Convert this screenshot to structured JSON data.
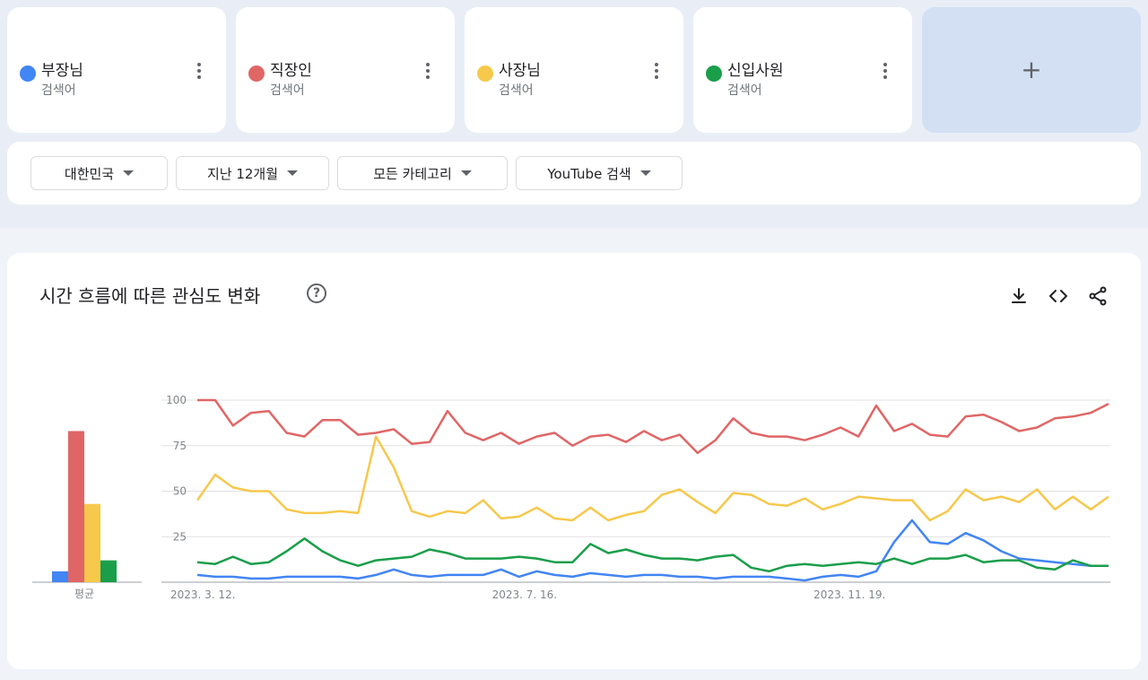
{
  "terms": [
    {
      "name": "부장님",
      "sub": "검색어",
      "color": "#4285f4"
    },
    {
      "name": "직장인",
      "sub": "검색어",
      "color": "#e06666"
    },
    {
      "name": "사장님",
      "sub": "검색어",
      "color": "#f6c84c"
    },
    {
      "name": "신입사원",
      "sub": "검색어",
      "color": "#1a9e4a"
    }
  ],
  "add_button": {
    "label": "+"
  },
  "filters": [
    "대한민국",
    "지난 12개월",
    "모든 카테고리",
    "YouTube 검색"
  ],
  "chart": {
    "title": "시간 흐름에 따른 관심도 변화",
    "help_label": "?",
    "average_label": "평균",
    "tools": {
      "download": "download-icon",
      "embed": "embed-icon",
      "share": "share-icon"
    }
  },
  "chart_data": {
    "type": "line",
    "ylim": [
      0,
      100
    ],
    "yticks": [
      25,
      50,
      75,
      100
    ],
    "xtick_labels": [
      {
        "index": 0,
        "label": "2023. 3. 12."
      },
      {
        "index": 18,
        "label": "2023. 7. 16."
      },
      {
        "index": 36,
        "label": "2023. 11. 19."
      }
    ],
    "averages": [
      6,
      83,
      43,
      12
    ],
    "grid": true,
    "series": [
      {
        "name": "부장님",
        "color": "#4285f4",
        "values": [
          4,
          3,
          3,
          2,
          2,
          3,
          3,
          3,
          3,
          2,
          4,
          7,
          4,
          3,
          4,
          4,
          4,
          7,
          3,
          6,
          4,
          3,
          5,
          4,
          3,
          4,
          4,
          3,
          3,
          2,
          3,
          3,
          3,
          2,
          1,
          3,
          4,
          3,
          6,
          22,
          34,
          22,
          21,
          27,
          23,
          17,
          13,
          12,
          11,
          10,
          9,
          9
        ]
      },
      {
        "name": "직장인",
        "color": "#e06666",
        "values": [
          100,
          100,
          86,
          93,
          94,
          82,
          80,
          89,
          89,
          81,
          82,
          84,
          76,
          77,
          94,
          82,
          78,
          82,
          76,
          80,
          82,
          75,
          80,
          81,
          77,
          83,
          78,
          81,
          71,
          78,
          90,
          82,
          80,
          80,
          78,
          81,
          85,
          80,
          97,
          83,
          87,
          81,
          80,
          91,
          92,
          88,
          83,
          85,
          90,
          91,
          93,
          98
        ]
      },
      {
        "name": "사장님",
        "color": "#f6c84c",
        "values": [
          45,
          59,
          52,
          50,
          50,
          40,
          38,
          38,
          39,
          38,
          80,
          63,
          39,
          36,
          39,
          38,
          45,
          35,
          36,
          41,
          35,
          34,
          41,
          34,
          37,
          39,
          48,
          51,
          44,
          38,
          49,
          48,
          43,
          42,
          46,
          40,
          43,
          47,
          46,
          45,
          45,
          34,
          39,
          51,
          45,
          47,
          44,
          51,
          40,
          47,
          40,
          47
        ]
      },
      {
        "name": "신입사원",
        "color": "#1a9e4a",
        "values": [
          11,
          10,
          14,
          10,
          11,
          17,
          24,
          17,
          12,
          9,
          12,
          13,
          14,
          18,
          16,
          13,
          13,
          13,
          14,
          13,
          11,
          11,
          21,
          16,
          18,
          15,
          13,
          13,
          12,
          14,
          15,
          8,
          6,
          9,
          10,
          9,
          10,
          11,
          10,
          13,
          10,
          13,
          13,
          15,
          11,
          12,
          12,
          8,
          7,
          12,
          9,
          9
        ]
      }
    ]
  }
}
